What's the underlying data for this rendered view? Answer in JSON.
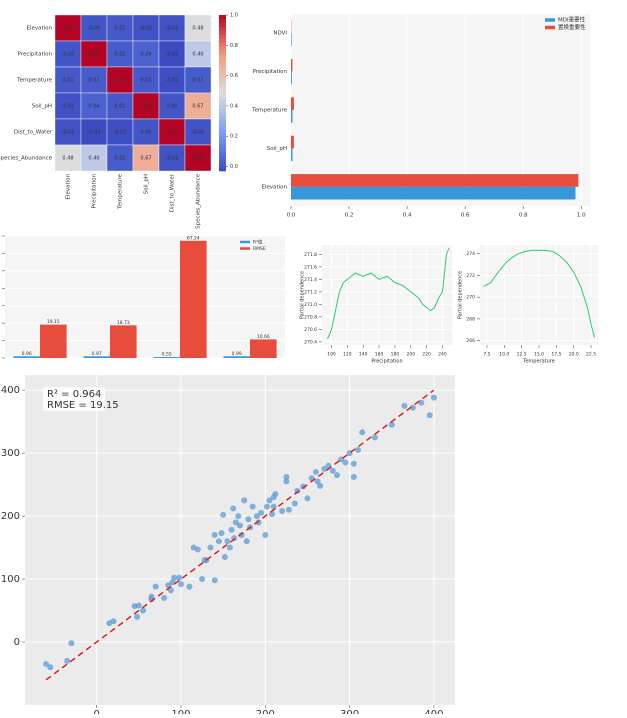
{
  "chart_data": [
    {
      "type": "heatmap",
      "rows": [
        "Elevation",
        "Precipitation",
        "Temperature",
        "Soil_pH",
        "Dist_to_Water",
        "Species_Abundance"
      ],
      "columns": [
        "Elevation",
        "Precipitation",
        "Temperature",
        "Soil_pH",
        "Dist_to_Water",
        "Species_Abundance"
      ],
      "values": [
        [
          1,
          0,
          0.01,
          -0.01,
          -0.01,
          0.48
        ],
        [
          0,
          1,
          0.02,
          0.04,
          -0.03,
          0.4
        ],
        [
          0.01,
          0.02,
          1,
          0.01,
          -0.02,
          0.02
        ],
        [
          -0.01,
          0.04,
          0.01,
          1,
          0,
          0.67
        ],
        [
          -0.01,
          -0.03,
          -0.02,
          0,
          1,
          -0.01
        ],
        [
          0.48,
          0.4,
          0.02,
          0.67,
          -0.01,
          1
        ]
      ],
      "value_labels": [
        [
          "1.00",
          "-0.00",
          "0.01",
          "-0.01",
          "-0.01",
          "0.48"
        ],
        [
          "-0.00",
          "1.00",
          "0.02",
          "0.04",
          "-0.03",
          "0.40"
        ],
        [
          "0.01",
          "0.02",
          "1.00",
          "0.01",
          "-0.02",
          "0.02"
        ],
        [
          "-0.01",
          "0.04",
          "0.01",
          "1.00",
          "0.00",
          "0.67"
        ],
        [
          "-0.01",
          "-0.03",
          "-0.02",
          "0.00",
          "1.00",
          "-0.01"
        ],
        [
          "0.48",
          "0.40",
          "0.02",
          "0.67",
          "-0.01",
          "1.00"
        ]
      ],
      "clim": [
        -0.03,
        1
      ],
      "colorbar_ticks": [
        {
          "value": 0,
          "label": "0.0"
        },
        0.2,
        0.4,
        0.6,
        0.8,
        {
          "value": 1,
          "label": "1.0"
        }
      ],
      "colormap": [
        "#3b4cc0",
        "#7b9ff9",
        "#dddddd",
        "#f49a7b",
        "#b40426"
      ]
    },
    {
      "type": "hbar",
      "categories": [
        "NDVI",
        "Precipitation",
        "Temperature",
        "Soil_pH",
        "Elevation"
      ],
      "series": [
        {
          "name": "MDI重要性",
          "color": "#3498db",
          "values": [
            0.002,
            0.003,
            0.005,
            0.005,
            0.98
          ]
        },
        {
          "name": "置换重要性",
          "color": "#e74c3c",
          "values": [
            0.001,
            0.005,
            0.01,
            0.01,
            0.99
          ]
        }
      ],
      "xlim": [
        0,
        1.03
      ],
      "xticks": [
        {
          "value": 0,
          "label": "0.0"
        },
        0.2,
        0.4,
        0.6,
        0.8,
        {
          "value": 1,
          "label": "1.0"
        }
      ],
      "grid": true,
      "legend": "upper right"
    },
    {
      "type": "grouped_bar",
      "categories": [
        null,
        null,
        null,
        null
      ],
      "series": [
        {
          "name": "R²值",
          "color": "#3498db",
          "values": [
            0.96,
            0.97,
            0.55,
            0.99
          ]
        },
        {
          "name": "RMSE",
          "color": "#e74c3c",
          "values": [
            19.15,
            18.73,
            67.24,
            10.66
          ]
        }
      ],
      "ylim": [
        0,
        70
      ],
      "yticks": [
        0,
        10,
        20,
        30,
        40,
        50,
        60,
        70
      ],
      "grid": true,
      "legend": "upper right"
    },
    {
      "type": "line",
      "x_label": "Precipitation",
      "y_label": "Partial dependence",
      "x": [
        95,
        100,
        105,
        110,
        115,
        120,
        125,
        130,
        140,
        150,
        160,
        170,
        180,
        190,
        200,
        210,
        215,
        220,
        225,
        230,
        235,
        240,
        245,
        248
      ],
      "series": [
        {
          "color": "#2ecc71",
          "values": [
            270.45,
            270.6,
            270.9,
            271.2,
            271.35,
            271.4,
            271.45,
            271.5,
            271.45,
            271.5,
            271.4,
            271.45,
            271.35,
            271.3,
            271.2,
            271.1,
            271.0,
            270.95,
            270.9,
            270.95,
            271.1,
            271.2,
            271.8,
            271.9
          ]
        }
      ],
      "xlim": [
        88,
        252
      ],
      "xticks": [
        100,
        120,
        140,
        160,
        180,
        200,
        220,
        240
      ],
      "ylim": [
        270.35,
        271.95
      ],
      "yticks": [
        270.4,
        270.6,
        270.8,
        {
          "value": 271,
          "label": "271.0"
        },
        271.2,
        271.4,
        271.6,
        271.8
      ],
      "grid": true
    },
    {
      "type": "line",
      "x_label": "Temperature",
      "y_label": "Partial dependence",
      "x": [
        7,
        8,
        9,
        10,
        11,
        12,
        13,
        14,
        15,
        16,
        17,
        18,
        19,
        20,
        21,
        22,
        22.5,
        23
      ],
      "series": [
        {
          "color": "#2ecc71",
          "values": [
            271,
            271.3,
            272.2,
            273,
            273.6,
            274,
            274.2,
            274.3,
            274.3,
            274.3,
            274.2,
            273.8,
            273.2,
            272.3,
            271,
            269,
            267.5,
            266.3
          ]
        }
      ],
      "xlim": [
        6.5,
        23.5
      ],
      "xticks": [
        7.5,
        {
          "value": 10,
          "label": "10.0"
        },
        12.5,
        {
          "value": 15,
          "label": "15.0"
        },
        17.5,
        {
          "value": 20,
          "label": "20.0"
        },
        22.5
      ],
      "ylim": [
        265.6,
        274.8
      ],
      "yticks": [
        266,
        268,
        270,
        272,
        274
      ],
      "grid": true
    },
    {
      "type": "scatter",
      "annotation": [
        "R² = 0.964",
        "RMSE = 19.15"
      ],
      "x": [
        -60,
        -55,
        -35,
        -30,
        15,
        20,
        45,
        48,
        50,
        55,
        65,
        65,
        70,
        80,
        85,
        88,
        90,
        92,
        98,
        100,
        110,
        115,
        120,
        125,
        128,
        135,
        140,
        140,
        145,
        148,
        150,
        152,
        155,
        158,
        160,
        162,
        163,
        165,
        168,
        170,
        172,
        175,
        178,
        180,
        182,
        185,
        190,
        192,
        195,
        200,
        202,
        205,
        208,
        210,
        212,
        220,
        225,
        225,
        228,
        235,
        238,
        245,
        250,
        255,
        260,
        262,
        265,
        270,
        275,
        280,
        285,
        290,
        295,
        300,
        305,
        305,
        310,
        315,
        330,
        350,
        365,
        375,
        385,
        395,
        400,
        130,
        210
      ],
      "y": [
        -35,
        -40,
        -30,
        -2,
        30,
        33,
        57,
        40,
        58,
        50,
        72,
        68,
        88,
        70,
        90,
        82,
        95,
        102,
        102,
        92,
        88,
        150,
        147,
        100,
        130,
        150,
        170,
        98,
        160,
        173,
        202,
        135,
        160,
        150,
        178,
        212,
        165,
        190,
        200,
        185,
        170,
        225,
        160,
        195,
        182,
        215,
        200,
        190,
        205,
        170,
        215,
        225,
        203,
        230,
        235,
        208,
        262,
        255,
        210,
        220,
        240,
        247,
        228,
        260,
        270,
        255,
        248,
        275,
        280,
        272,
        265,
        290,
        285,
        300,
        262,
        283,
        305,
        333,
        325,
        345,
        375,
        372,
        380,
        360,
        388,
        130,
        215
      ],
      "color": "#5b9bd5",
      "reference_line": {
        "x": [
          -60,
          400
        ],
        "y": [
          -60,
          400
        ],
        "color": "#e02020"
      },
      "xlim": [
        -85,
        425
      ],
      "xticks": [
        0,
        100,
        200,
        300,
        400
      ],
      "ylim": [
        -100,
        424
      ],
      "yticks": [
        0,
        100,
        200,
        300,
        400
      ],
      "grid": true
    }
  ]
}
